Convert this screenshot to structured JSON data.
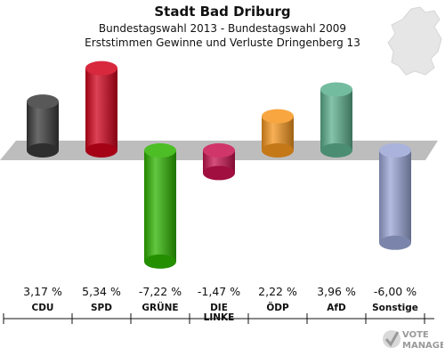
{
  "header": {
    "title": "Stadt Bad Driburg",
    "subtitle": "Bundestagswahl 2013 - Bundestagswahl 2009",
    "description": "Erststimmen Gewinne und Verluste Dringenberg 13"
  },
  "watermark": {
    "text": "VOTE MANAGER"
  },
  "chart_data": {
    "type": "bar",
    "title": "Stadt Bad Driburg",
    "subtitle": "Bundestagswahl 2013 - Bundestagswahl 2009",
    "description": "Erststimmen Gewinne und Verluste Dringenberg 13",
    "categories": [
      "CDU",
      "SPD",
      "GRÜNE",
      "DIE LINKE",
      "ÖDP",
      "AfD",
      "Sonstige"
    ],
    "category_lines": [
      [
        "CDU"
      ],
      [
        "SPD"
      ],
      [
        "GRÜNE"
      ],
      [
        "DIE",
        "LINKE"
      ],
      [
        "ÖDP"
      ],
      [
        "AfD"
      ],
      [
        "Sonstige"
      ]
    ],
    "values": [
      3.17,
      5.34,
      -7.22,
      -1.47,
      2.22,
      3.96,
      -6.0
    ],
    "value_labels": [
      "3,17 %",
      "5,34 %",
      "-7,22 %",
      "-1,47 %",
      "2,22 %",
      "3,96 %",
      "-6,00 %"
    ],
    "colors": [
      "#3a3a3a",
      "#d0021b",
      "#2db300",
      "#c8134f",
      "#f5961e",
      "#5cb08e",
      "#9aa6d6"
    ],
    "unit": "%",
    "ylim": [
      -8,
      6
    ],
    "grid": false,
    "legend": "none"
  }
}
